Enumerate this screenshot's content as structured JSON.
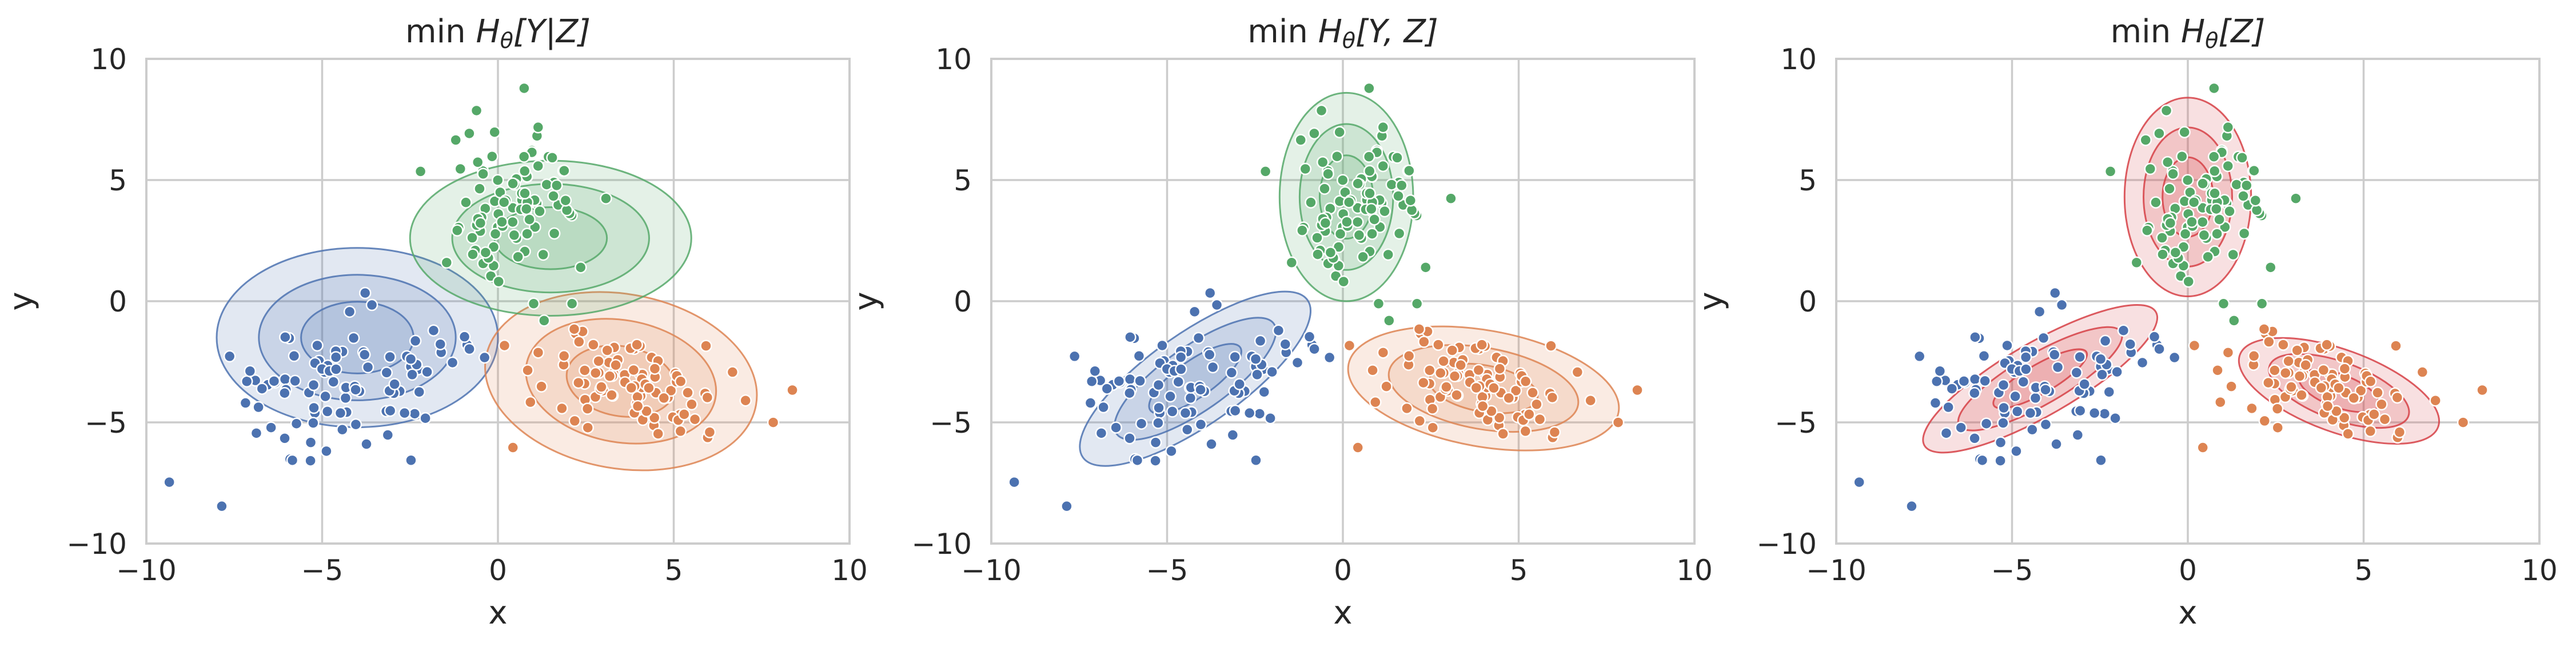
{
  "figure_style": {
    "colors": {
      "blue": "#4C72B0",
      "orange": "#DD8452",
      "green": "#55A868",
      "red": "#D64045",
      "grid": "#cccccc",
      "text": "#262626"
    }
  },
  "chart_data": [
    {
      "type": "scatter",
      "title_prefix": "min ",
      "title_math": "H",
      "title_sub": "θ",
      "title_arg": "[Y|Z]",
      "xlabel": "x",
      "ylabel": "y",
      "xlim": [
        -10,
        10
      ],
      "ylim": [
        -10,
        10
      ],
      "xticks": [
        -10,
        -5,
        0,
        5,
        10
      ],
      "yticks": [
        -10,
        -5,
        0,
        5,
        10
      ],
      "tick_labels_x": [
        "−10",
        "−5",
        "0",
        "5",
        "10"
      ],
      "tick_labels_y": [
        "−10",
        "−5",
        "0",
        "5",
        "10"
      ],
      "grid": true,
      "series": [
        {
          "color": "blue",
          "n": 95,
          "center": [
            -4.2,
            -3.4
          ],
          "spread": [
            1.7,
            1.6
          ],
          "corr": 0.45
        },
        {
          "color": "orange",
          "n": 95,
          "center": [
            3.9,
            -3.6
          ],
          "spread": [
            1.5,
            1.0
          ],
          "corr": -0.25
        },
        {
          "color": "green",
          "n": 95,
          "center": [
            0.2,
            4.0
          ],
          "spread": [
            1.0,
            1.7
          ],
          "corr": -0.1
        }
      ],
      "ellipses": [
        {
          "color": "blue",
          "center": [
            -4.0,
            -1.5
          ],
          "radii": [
            4.0,
            3.7
          ],
          "angle": 0
        },
        {
          "color": "orange",
          "center": [
            3.5,
            -3.3
          ],
          "radii": [
            3.9,
            3.6
          ],
          "angle": -10
        },
        {
          "color": "green",
          "center": [
            1.5,
            2.6
          ],
          "radii": [
            4.0,
            3.2
          ],
          "angle": 0
        }
      ]
    },
    {
      "type": "scatter",
      "title_prefix": "min ",
      "title_math": "H",
      "title_sub": "θ",
      "title_arg": "[Y, Z]",
      "xlabel": "x",
      "ylabel": "y",
      "xlim": [
        -10,
        10
      ],
      "ylim": [
        -10,
        10
      ],
      "xticks": [
        -10,
        -5,
        0,
        5,
        10
      ],
      "yticks": [
        -10,
        -5,
        0,
        5,
        10
      ],
      "tick_labels_x": [
        "−10",
        "−5",
        "0",
        "5",
        "10"
      ],
      "tick_labels_y": [
        "−10",
        "−5",
        "0",
        "5",
        "10"
      ],
      "grid": true,
      "series": [
        {
          "color": "blue",
          "n": 95,
          "center": [
            -4.2,
            -3.4
          ],
          "spread": [
            1.7,
            1.6
          ],
          "corr": 0.45
        },
        {
          "color": "orange",
          "n": 95,
          "center": [
            3.9,
            -3.6
          ],
          "spread": [
            1.5,
            1.0
          ],
          "corr": -0.25
        },
        {
          "color": "green",
          "n": 95,
          "center": [
            0.2,
            4.0
          ],
          "spread": [
            1.0,
            1.7
          ],
          "corr": -0.1
        }
      ],
      "ellipses": [
        {
          "color": "blue",
          "center": [
            -4.2,
            -3.2
          ],
          "radii": [
            3.9,
            1.9
          ],
          "angle": 35
        },
        {
          "color": "orange",
          "center": [
            4.0,
            -3.6
          ],
          "radii": [
            3.9,
            2.4
          ],
          "angle": -10
        },
        {
          "color": "green",
          "center": [
            0.1,
            4.3
          ],
          "radii": [
            1.9,
            4.3
          ],
          "angle": 0
        }
      ]
    },
    {
      "type": "scatter",
      "title_prefix": "min ",
      "title_math": "H",
      "title_sub": "θ",
      "title_arg": "[Z]",
      "xlabel": "x",
      "ylabel": "y",
      "xlim": [
        -10,
        10
      ],
      "ylim": [
        -10,
        10
      ],
      "xticks": [
        -10,
        -5,
        0,
        5,
        10
      ],
      "yticks": [
        -10,
        -5,
        0,
        5,
        10
      ],
      "tick_labels_x": [
        "−10",
        "−5",
        "0",
        "5",
        "10"
      ],
      "tick_labels_y": [
        "−10",
        "−5",
        "0",
        "5",
        "10"
      ],
      "grid": true,
      "series": [
        {
          "color": "blue",
          "n": 95,
          "center": [
            -4.2,
            -3.4
          ],
          "spread": [
            1.7,
            1.6
          ],
          "corr": 0.45
        },
        {
          "color": "orange",
          "n": 95,
          "center": [
            3.9,
            -3.6
          ],
          "spread": [
            1.5,
            1.0
          ],
          "corr": -0.25
        },
        {
          "color": "green",
          "n": 95,
          "center": [
            0.2,
            4.0
          ],
          "spread": [
            1.0,
            1.7
          ],
          "corr": -0.1
        }
      ],
      "ellipses": [
        {
          "color": "red",
          "center": [
            -4.2,
            -3.2
          ],
          "radii": [
            3.8,
            1.5
          ],
          "angle": 30
        },
        {
          "color": "red",
          "center": [
            4.3,
            -3.7
          ],
          "radii": [
            3.0,
            1.7
          ],
          "angle": -20
        },
        {
          "color": "red",
          "center": [
            0.0,
            4.3
          ],
          "radii": [
            1.8,
            4.1
          ],
          "angle": 0
        }
      ]
    }
  ]
}
